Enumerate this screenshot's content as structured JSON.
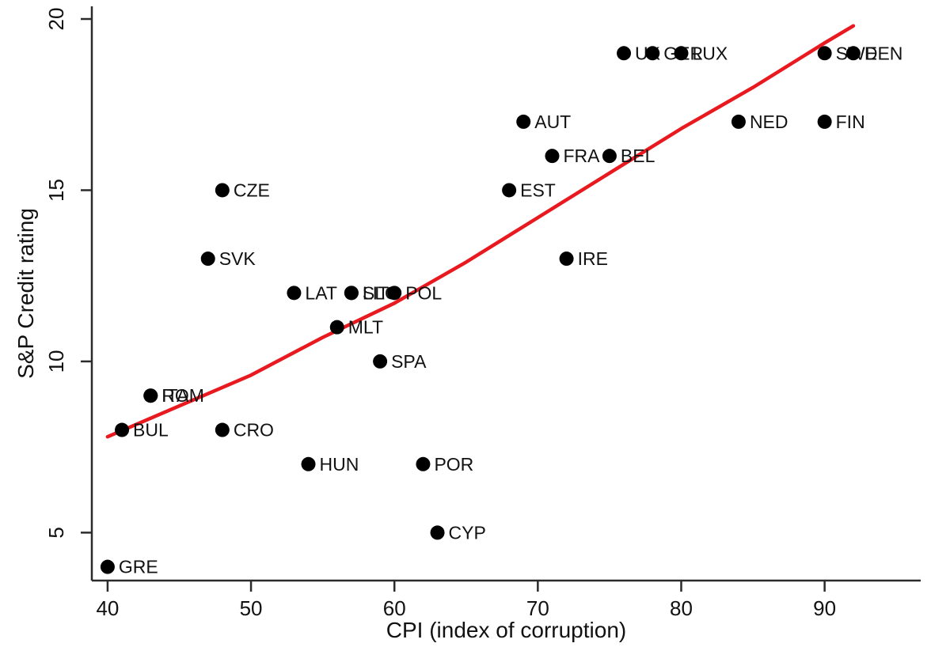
{
  "chart_data": {
    "type": "scatter",
    "title": "",
    "xlabel": "CPI (index of corruption)",
    "ylabel": "S&P Credit rating",
    "x_ticks": [
      40,
      50,
      60,
      70,
      80,
      90
    ],
    "y_ticks": [
      5,
      10,
      15,
      20
    ],
    "xlim": [
      38.9,
      96.7
    ],
    "ylim": [
      3.6,
      20.37
    ],
    "grid": false,
    "legend": "none",
    "point_color": "#000000",
    "label_color": "#111111",
    "axis_color": "#2b2b2b",
    "trend_color": "#e8191f",
    "points": [
      {
        "label": "GRE",
        "x": 40,
        "y": 4
      },
      {
        "label": "BUL",
        "x": 41,
        "y": 8
      },
      {
        "label": "ITA",
        "x": 43,
        "y": 9
      },
      {
        "label": "ROM",
        "x": 43,
        "y": 9
      },
      {
        "label": "SVK",
        "x": 47,
        "y": 13
      },
      {
        "label": "CRO",
        "x": 48,
        "y": 8
      },
      {
        "label": "CZE",
        "x": 48,
        "y": 15
      },
      {
        "label": "LAT",
        "x": 53,
        "y": 12
      },
      {
        "label": "HUN",
        "x": 54,
        "y": 7
      },
      {
        "label": "MLT",
        "x": 56,
        "y": 11
      },
      {
        "label": "SLO",
        "x": 57,
        "y": 12
      },
      {
        "label": "LIT",
        "x": 57,
        "y": 12
      },
      {
        "label": "SPA",
        "x": 59,
        "y": 10
      },
      {
        "label": "POL",
        "x": 60,
        "y": 12
      },
      {
        "label": "POR",
        "x": 62,
        "y": 7
      },
      {
        "label": "CYP",
        "x": 63,
        "y": 5
      },
      {
        "label": "EST",
        "x": 68,
        "y": 15
      },
      {
        "label": "AUT",
        "x": 69,
        "y": 17
      },
      {
        "label": "FRA",
        "x": 71,
        "y": 16
      },
      {
        "label": "IRE",
        "x": 72,
        "y": 13
      },
      {
        "label": "BEL",
        "x": 75,
        "y": 16
      },
      {
        "label": "UK",
        "x": 76,
        "y": 19
      },
      {
        "label": "GER",
        "x": 78,
        "y": 19
      },
      {
        "label": "LUX",
        "x": 80,
        "y": 19
      },
      {
        "label": "NED",
        "x": 84,
        "y": 17
      },
      {
        "label": "FIN",
        "x": 90,
        "y": 17
      },
      {
        "label": "SWE",
        "x": 90,
        "y": 19
      },
      {
        "label": "DEN",
        "x": 92,
        "y": 19
      }
    ],
    "trend": {
      "kind": "fitted-curve",
      "points": [
        [
          40,
          7.8
        ],
        [
          45,
          8.7
        ],
        [
          50,
          9.6
        ],
        [
          55,
          10.7
        ],
        [
          60,
          11.7
        ],
        [
          65,
          12.9
        ],
        [
          70,
          14.2
        ],
        [
          75,
          15.5
        ],
        [
          80,
          16.8
        ],
        [
          85,
          18.0
        ],
        [
          90,
          19.3
        ],
        [
          92,
          19.8
        ]
      ]
    }
  }
}
